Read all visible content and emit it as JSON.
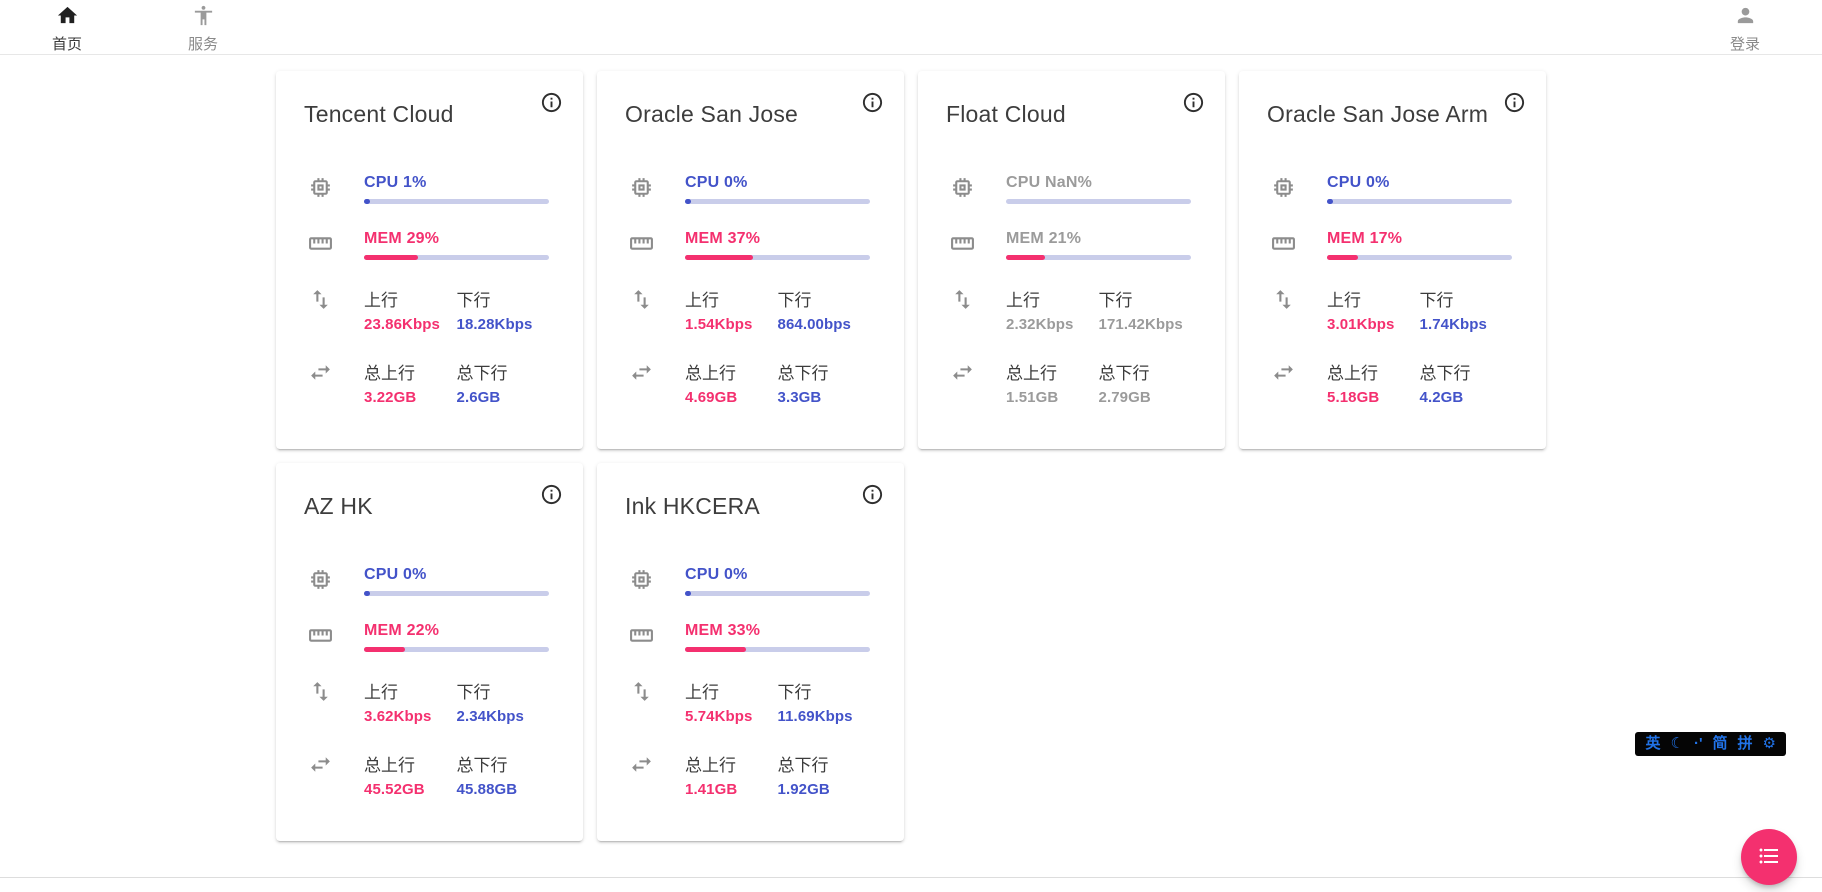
{
  "navbar": {
    "home_label": "首页",
    "services_label": "服务",
    "login_label": "登录"
  },
  "card_labels": {
    "up": "上行",
    "down": "下行",
    "total_up": "总上行",
    "total_down": "总下行"
  },
  "servers": [
    {
      "name": "Tencent Cloud",
      "cpu_label": "CPU 1%",
      "cpu_percent": 1,
      "mem_label": "MEM 29%",
      "mem_percent": 29,
      "up": "23.86Kbps",
      "down": "18.28Kbps",
      "total_up": "3.22GB",
      "total_down": "2.6GB",
      "offline": false
    },
    {
      "name": "Oracle San Jose",
      "cpu_label": "CPU 0%",
      "cpu_percent": 0,
      "mem_label": "MEM 37%",
      "mem_percent": 37,
      "up": "1.54Kbps",
      "down": "864.00bps",
      "total_up": "4.69GB",
      "total_down": "3.3GB",
      "offline": false
    },
    {
      "name": "Float Cloud",
      "cpu_label": "CPU NaN%",
      "cpu_percent": 0,
      "mem_label": "MEM 21%",
      "mem_percent": 21,
      "up": "2.32Kbps",
      "down": "171.42Kbps",
      "total_up": "1.51GB",
      "total_down": "2.79GB",
      "offline": true
    },
    {
      "name": "Oracle San Jose Arm",
      "cpu_label": "CPU 0%",
      "cpu_percent": 0,
      "mem_label": "MEM 17%",
      "mem_percent": 17,
      "up": "3.01Kbps",
      "down": "1.74Kbps",
      "total_up": "5.18GB",
      "total_down": "4.2GB",
      "offline": false
    },
    {
      "name": "AZ HK",
      "cpu_label": "CPU 0%",
      "cpu_percent": 0,
      "mem_label": "MEM 22%",
      "mem_percent": 22,
      "up": "3.62Kbps",
      "down": "2.34Kbps",
      "total_up": "45.52GB",
      "total_down": "45.88GB",
      "offline": false
    },
    {
      "name": "Ink HKCERA",
      "cpu_label": "CPU 0%",
      "cpu_percent": 0,
      "mem_label": "MEM 33%",
      "mem_percent": 33,
      "up": "5.74Kbps",
      "down": "11.69Kbps",
      "total_up": "1.41GB",
      "total_down": "1.92GB",
      "offline": false
    }
  ],
  "ime_bar": {
    "lang": "英",
    "fullwidth": "☾",
    "punct": "·'",
    "charset": "简",
    "scheme": "拼",
    "settings": "⚙"
  },
  "colors": {
    "accent_pink": "#f4306f",
    "accent_blue": "#4353c9",
    "bar_track": "#c9cdea",
    "offline_gray": "#9b9b9b"
  }
}
